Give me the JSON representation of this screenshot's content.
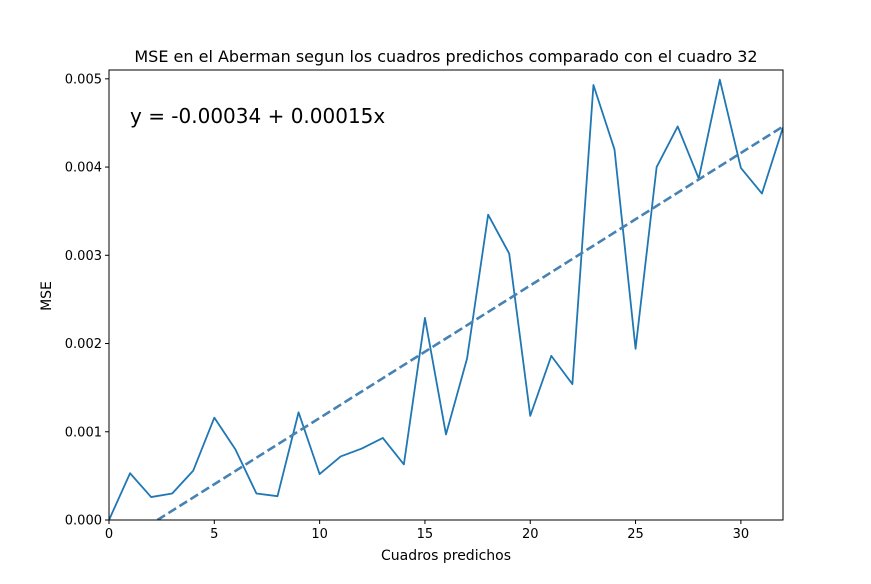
{
  "chart_data": {
    "type": "line",
    "title": "MSE en el Aberman segun los cuadros predichos comparado con el cuadro 32",
    "xlabel": "Cuadros predichos",
    "ylabel": "MSE",
    "xlim": [
      0,
      32
    ],
    "ylim": [
      0,
      0.0051
    ],
    "xticks": [
      0,
      5,
      10,
      15,
      20,
      25,
      30
    ],
    "xtick_labels": [
      "0",
      "5",
      "10",
      "15",
      "20",
      "25",
      "30"
    ],
    "yticks": [
      0,
      0.001,
      0.002,
      0.003,
      0.004,
      0.005
    ],
    "ytick_labels": [
      "0.000",
      "0.001",
      "0.002",
      "0.003",
      "0.004",
      "0.005"
    ],
    "annotation": "y = -0.00034 + 0.00015x",
    "grid": false,
    "colors": {
      "series": "#1f77b4",
      "fit": "#4682b4"
    },
    "series": [
      {
        "x": [
          0,
          1,
          2,
          3,
          4,
          5,
          6,
          7,
          8,
          9,
          10,
          11,
          12,
          13,
          14,
          15,
          16,
          17,
          18,
          19,
          20,
          21,
          22,
          23,
          24,
          25,
          26,
          27,
          28,
          29,
          30,
          31,
          32
        ],
        "values": [
          0.0,
          0.00053,
          0.00026,
          0.0003,
          0.00056,
          0.00116,
          0.0008,
          0.0003,
          0.00027,
          0.00122,
          0.00052,
          0.00072,
          0.00081,
          0.00093,
          0.00063,
          0.00229,
          0.00097,
          0.00183,
          0.00346,
          0.00302,
          0.00118,
          0.00186,
          0.00154,
          0.00493,
          0.0042,
          0.00194,
          0.004,
          0.00446,
          0.00387,
          0.00499,
          0.00399,
          0.0037,
          0.00445
        ],
        "style": "solid"
      },
      {
        "x": [
          2.3,
          32
        ],
        "values": [
          0.0,
          0.00446
        ],
        "style": "dashed"
      }
    ]
  }
}
